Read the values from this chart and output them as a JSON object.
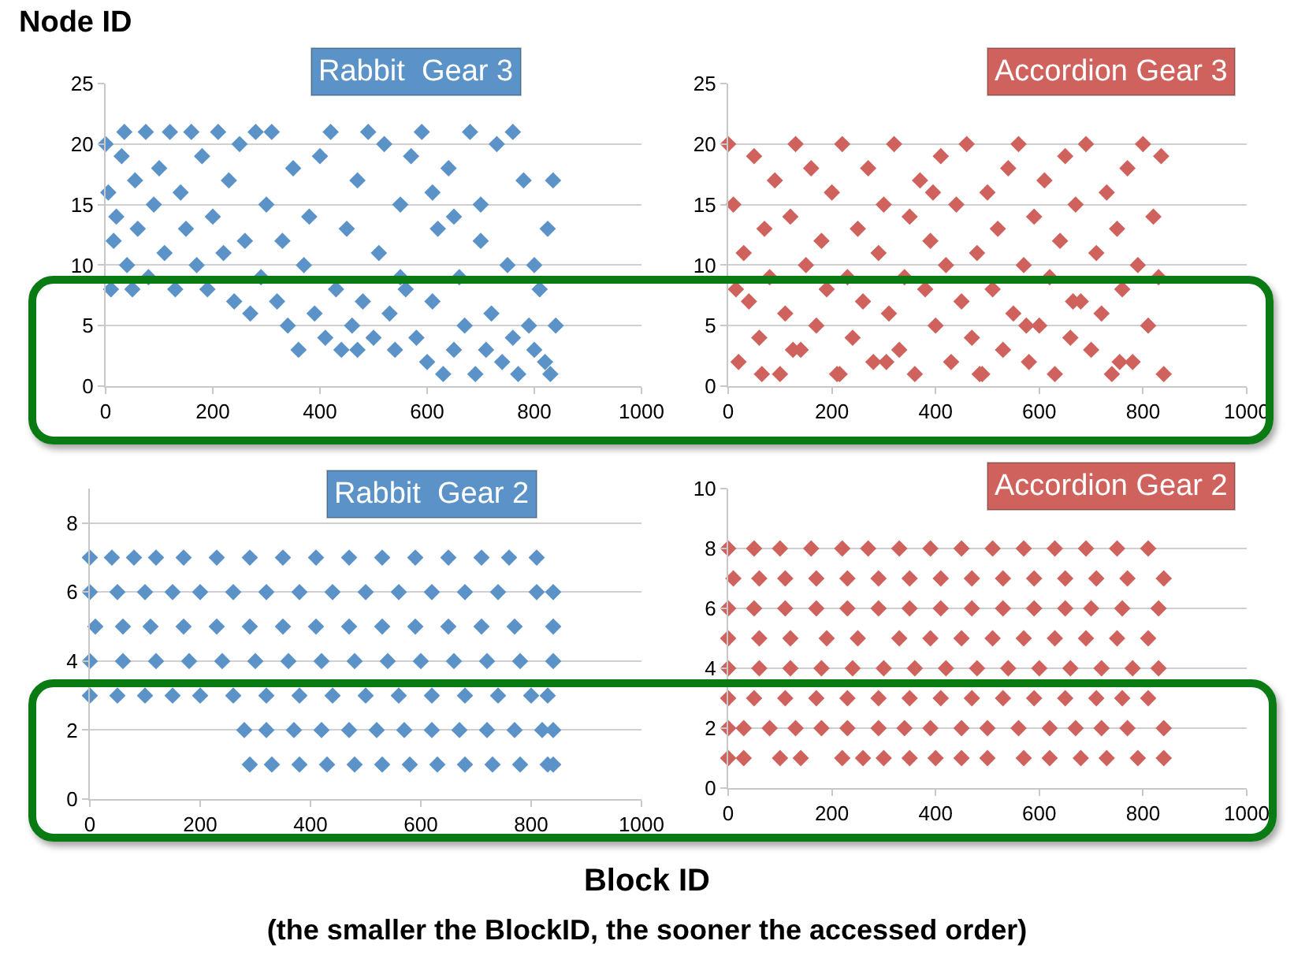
{
  "chart_data": [
    {
      "type": "scatter",
      "title": "Rabbit  Gear 3",
      "ylabel": "Node ID",
      "marker": "diamond",
      "grid": "y",
      "xlim": [
        0,
        1000
      ],
      "xticks": [
        0,
        200,
        400,
        600,
        800,
        1000
      ],
      "ylim": [
        0,
        25
      ],
      "yticks": [
        0,
        5,
        10,
        15,
        20,
        25
      ],
      "series": [
        {
          "color": "#5b93c8",
          "x": [
            0,
            5,
            10,
            15,
            20,
            30,
            35,
            40,
            50,
            55,
            60,
            75,
            80,
            90,
            100,
            110,
            120,
            130,
            140,
            150,
            160,
            170,
            180,
            190,
            200,
            210,
            220,
            230,
            240,
            250,
            260,
            270,
            280,
            290,
            300,
            310,
            320,
            330,
            340,
            350,
            360,
            370,
            380,
            390,
            400,
            410,
            420,
            430,
            440,
            450,
            460,
            470,
            480,
            490,
            500,
            510,
            520,
            530,
            540,
            550,
            560,
            570,
            580,
            590,
            600,
            610,
            620,
            630,
            640,
            650,
            660,
            670,
            680,
            690,
            700,
            710,
            720,
            730,
            740,
            750,
            760,
            770,
            780,
            790,
            800,
            810,
            820,
            830,
            835,
            840,
            825,
            800,
            760,
            700,
            650,
            610,
            550,
            470
          ],
          "values": [
            20,
            16,
            8,
            12,
            14,
            19,
            21,
            10,
            8,
            17,
            13,
            21,
            9,
            15,
            18,
            11,
            21,
            8,
            16,
            13,
            21,
            10,
            19,
            8,
            14,
            21,
            11,
            17,
            7,
            20,
            12,
            6,
            21,
            9,
            15,
            21,
            7,
            12,
            5,
            18,
            3,
            10,
            14,
            6,
            19,
            4,
            21,
            8,
            3,
            13,
            5,
            17,
            7,
            21,
            4,
            11,
            20,
            6,
            3,
            15,
            8,
            19,
            4,
            21,
            2,
            7,
            13,
            1,
            18,
            3,
            9,
            5,
            21,
            1,
            12,
            3,
            6,
            20,
            2,
            10,
            4,
            1,
            17,
            5,
            3,
            8,
            2,
            1,
            17,
            5,
            13,
            10,
            21,
            15,
            14,
            16,
            9,
            3
          ]
        }
      ]
    },
    {
      "type": "scatter",
      "title": "Accordion Gear 3",
      "marker": "diamond",
      "grid": "y",
      "xlim": [
        0,
        1000
      ],
      "xticks": [
        0,
        200,
        400,
        600,
        800,
        1000
      ],
      "ylim": [
        0,
        25
      ],
      "yticks": [
        0,
        5,
        10,
        15,
        20,
        25
      ],
      "series": [
        {
          "color": "#d0625d",
          "x": [
            0,
            10,
            20,
            30,
            40,
            50,
            60,
            70,
            80,
            90,
            100,
            110,
            120,
            130,
            140,
            150,
            160,
            170,
            180,
            190,
            200,
            210,
            220,
            230,
            240,
            250,
            260,
            270,
            280,
            290,
            300,
            310,
            320,
            330,
            340,
            350,
            360,
            370,
            380,
            390,
            400,
            410,
            420,
            430,
            440,
            450,
            460,
            470,
            480,
            490,
            500,
            510,
            520,
            530,
            540,
            550,
            560,
            570,
            580,
            590,
            600,
            610,
            620,
            630,
            640,
            650,
            660,
            670,
            680,
            690,
            700,
            710,
            720,
            730,
            740,
            750,
            760,
            770,
            780,
            790,
            800,
            810,
            820,
            830,
            840,
            15,
            65,
            125,
            215,
            305,
            395,
            485,
            575,
            665,
            755,
            835
          ],
          "values": [
            20,
            15,
            2,
            11,
            7,
            19,
            4,
            13,
            9,
            17,
            1,
            6,
            14,
            20,
            3,
            10,
            18,
            5,
            12,
            8,
            16,
            1,
            20,
            9,
            4,
            13,
            7,
            18,
            2,
            11,
            15,
            6,
            20,
            3,
            9,
            14,
            1,
            17,
            8,
            12,
            5,
            19,
            10,
            2,
            15,
            7,
            20,
            4,
            11,
            1,
            16,
            8,
            13,
            3,
            18,
            6,
            20,
            10,
            2,
            14,
            5,
            17,
            9,
            1,
            12,
            19,
            4,
            15,
            7,
            20,
            3,
            11,
            6,
            16,
            1,
            13,
            8,
            18,
            2,
            10,
            20,
            5,
            14,
            9,
            1,
            8,
            1,
            3,
            1,
            2,
            16,
            1,
            5,
            7,
            2,
            19
          ]
        }
      ]
    },
    {
      "type": "scatter",
      "title": "Rabbit  Gear 2",
      "xlabel": "Block ID",
      "annotations": [
        "(the smaller the BlockID, the sooner the accessed order)"
      ],
      "marker": "diamond",
      "grid": "y",
      "xlim": [
        0,
        1000
      ],
      "xticks": [
        0,
        200,
        400,
        600,
        800,
        1000
      ],
      "ylim": [
        0,
        9
      ],
      "yticks": [
        0,
        2,
        4,
        6,
        8
      ],
      "series": [
        {
          "color": "#5b93c8",
          "x": [
            0,
            40,
            80,
            120,
            170,
            230,
            290,
            350,
            410,
            470,
            530,
            590,
            650,
            710,
            760,
            810,
            0,
            50,
            100,
            150,
            200,
            260,
            320,
            380,
            440,
            500,
            560,
            620,
            680,
            740,
            810,
            840,
            10,
            60,
            110,
            170,
            230,
            290,
            350,
            410,
            470,
            530,
            590,
            650,
            710,
            770,
            840,
            0,
            60,
            120,
            180,
            240,
            300,
            360,
            420,
            480,
            540,
            600,
            660,
            720,
            780,
            840,
            0,
            50,
            100,
            150,
            200,
            260,
            320,
            380,
            440,
            500,
            560,
            620,
            680,
            740,
            800,
            830,
            280,
            320,
            370,
            420,
            470,
            520,
            570,
            620,
            670,
            720,
            770,
            820,
            840,
            290,
            330,
            380,
            430,
            480,
            530,
            580,
            630,
            680,
            730,
            780,
            830,
            840
          ],
          "values": [
            7,
            7,
            7,
            7,
            7,
            7,
            7,
            7,
            7,
            7,
            7,
            7,
            7,
            7,
            7,
            7,
            6,
            6,
            6,
            6,
            6,
            6,
            6,
            6,
            6,
            6,
            6,
            6,
            6,
            6,
            6,
            6,
            5,
            5,
            5,
            5,
            5,
            5,
            5,
            5,
            5,
            5,
            5,
            5,
            5,
            5,
            5,
            4,
            4,
            4,
            4,
            4,
            4,
            4,
            4,
            4,
            4,
            4,
            4,
            4,
            4,
            4,
            3,
            3,
            3,
            3,
            3,
            3,
            3,
            3,
            3,
            3,
            3,
            3,
            3,
            3,
            3,
            3,
            2,
            2,
            2,
            2,
            2,
            2,
            2,
            2,
            2,
            2,
            2,
            2,
            2,
            1,
            1,
            1,
            1,
            1,
            1,
            1,
            1,
            1,
            1,
            1,
            1,
            1
          ]
        }
      ]
    },
    {
      "type": "scatter",
      "title": "Accordion Gear 2",
      "marker": "diamond",
      "grid": "y",
      "xlim": [
        0,
        1000
      ],
      "xticks": [
        0,
        200,
        400,
        600,
        800,
        1000
      ],
      "ylim": [
        0,
        10
      ],
      "yticks": [
        0,
        2,
        4,
        6,
        8,
        10
      ],
      "series": [
        {
          "color": "#d0625d",
          "x": [
            0,
            50,
            100,
            160,
            220,
            270,
            330,
            390,
            450,
            510,
            570,
            630,
            690,
            750,
            810,
            10,
            60,
            110,
            170,
            230,
            290,
            350,
            410,
            470,
            530,
            590,
            650,
            710,
            770,
            840,
            0,
            50,
            110,
            170,
            230,
            290,
            350,
            410,
            470,
            530,
            590,
            650,
            700,
            760,
            830,
            0,
            60,
            120,
            190,
            250,
            330,
            390,
            450,
            510,
            570,
            630,
            690,
            750,
            810,
            0,
            60,
            120,
            180,
            240,
            300,
            360,
            420,
            480,
            540,
            600,
            660,
            720,
            780,
            830,
            0,
            50,
            110,
            170,
            230,
            290,
            350,
            410,
            470,
            530,
            590,
            650,
            710,
            760,
            810,
            0,
            30,
            80,
            130,
            180,
            230,
            290,
            340,
            390,
            450,
            500,
            560,
            620,
            670,
            720,
            770,
            840,
            0,
            30,
            100,
            140,
            220,
            260,
            300,
            350,
            400,
            450,
            500,
            570,
            620,
            680,
            730,
            790,
            840
          ],
          "values": [
            8,
            8,
            8,
            8,
            8,
            8,
            8,
            8,
            8,
            8,
            8,
            8,
            8,
            8,
            8,
            7,
            7,
            7,
            7,
            7,
            7,
            7,
            7,
            7,
            7,
            7,
            7,
            7,
            7,
            7,
            6,
            6,
            6,
            6,
            6,
            6,
            6,
            6,
            6,
            6,
            6,
            6,
            6,
            6,
            6,
            5,
            5,
            5,
            5,
            5,
            5,
            5,
            5,
            5,
            5,
            5,
            5,
            5,
            5,
            4,
            4,
            4,
            4,
            4,
            4,
            4,
            4,
            4,
            4,
            4,
            4,
            4,
            4,
            4,
            3,
            3,
            3,
            3,
            3,
            3,
            3,
            3,
            3,
            3,
            3,
            3,
            3,
            3,
            3,
            2,
            2,
            2,
            2,
            2,
            2,
            2,
            2,
            2,
            2,
            2,
            2,
            2,
            2,
            2,
            2,
            2,
            1,
            1,
            1,
            1,
            1,
            1,
            1,
            1,
            1,
            1,
            1,
            1,
            1,
            1,
            1,
            1,
            1
          ]
        }
      ]
    }
  ]
}
